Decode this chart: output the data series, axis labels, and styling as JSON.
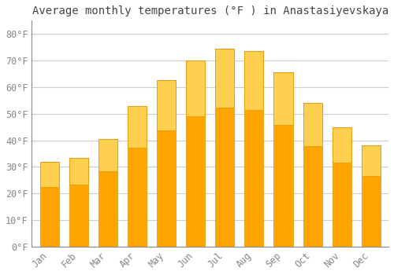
{
  "title": "Average monthly temperatures (°F ) in Anastasiyevskaya",
  "months": [
    "Jan",
    "Feb",
    "Mar",
    "Apr",
    "May",
    "Jun",
    "Jul",
    "Aug",
    "Sep",
    "Oct",
    "Nov",
    "Dec"
  ],
  "temperatures": [
    32,
    33.5,
    40.5,
    53,
    62.5,
    70,
    74.5,
    73.5,
    65.5,
    54,
    45,
    38
  ],
  "bar_color_top": "#FFD050",
  "bar_color_bottom": "#FFA500",
  "bar_edge_color": "#E89000",
  "background_color": "#FFFFFF",
  "grid_color": "#CCCCCC",
  "title_color": "#444444",
  "tick_label_color": "#888888",
  "ytick_labels": [
    "0°F",
    "10°F",
    "20°F",
    "30°F",
    "40°F",
    "50°F",
    "60°F",
    "70°F",
    "80°F"
  ],
  "ytick_values": [
    0,
    10,
    20,
    30,
    40,
    50,
    60,
    70,
    80
  ],
  "ylim": [
    0,
    85
  ],
  "title_fontsize": 10,
  "tick_fontsize": 8.5,
  "font_family": "monospace"
}
